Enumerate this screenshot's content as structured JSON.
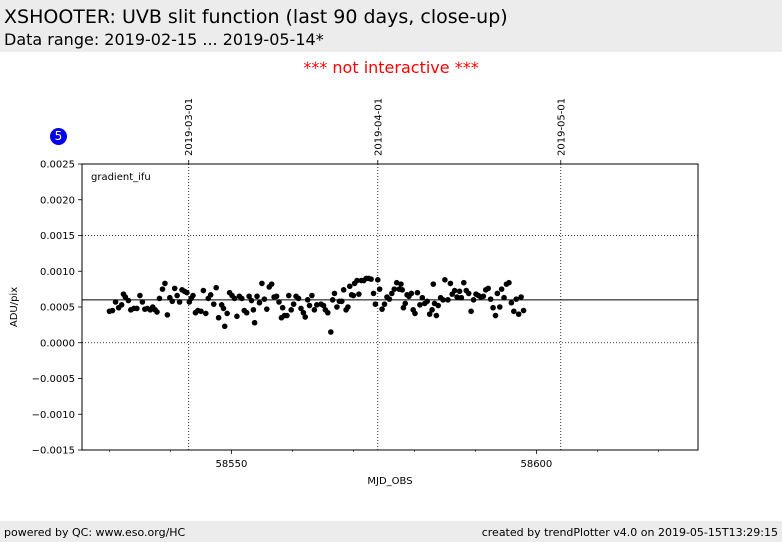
{
  "header": {
    "title": "XSHOOTER: UVB slit function (last 90 days, close-up)",
    "subtitle": "Data range: 2019-02-15 ... 2019-05-14*"
  },
  "notice": "*** not interactive ***",
  "badge": "5",
  "footer": {
    "left": "powered by QC: www.eso.org/HC",
    "right": "created by trendPlotter v4.0 on 2019-05-15T13:29:15"
  },
  "colors": {
    "points": "#000000",
    "notice": "#ff0000",
    "badge": "#0000ee",
    "band": "#ececec"
  },
  "chart_data": {
    "type": "scatter",
    "panel_label": "gradient_ifu",
    "xlabel": "MJD_OBS",
    "ylabel": "ADU/pix",
    "xlim": [
      58525.5,
      58626.5
    ],
    "ylim": [
      -0.0015,
      0.0025
    ],
    "x_ticks": [
      58550,
      58600
    ],
    "x_tick_labels": [
      "58550",
      "58600"
    ],
    "y_ticks": [
      -0.0015,
      -0.001,
      -0.0005,
      0.0,
      0.0005,
      0.001,
      0.0015,
      0.002,
      0.0025
    ],
    "y_tick_labels": [
      "−0.0015",
      "−0.0010",
      "−0.0005",
      "0.0000",
      "0.0005",
      "0.0010",
      "0.0015",
      "0.0020",
      "0.0025"
    ],
    "date_markers": [
      {
        "x": 58543,
        "label": "2019-03-01"
      },
      {
        "x": 58574,
        "label": "2019-04-01"
      },
      {
        "x": 58604,
        "label": "2019-05-01"
      }
    ],
    "reference_line": 0.0006,
    "dotted_hlines": [
      0.0,
      0.0015
    ],
    "points": [
      [
        58530.0,
        0.00044
      ],
      [
        58530.5,
        0.00045
      ],
      [
        58531.0,
        0.00057
      ],
      [
        58531.5,
        0.00049
      ],
      [
        58532.0,
        0.00053
      ],
      [
        58532.3,
        0.00068
      ],
      [
        58532.6,
        0.00064
      ],
      [
        58533.1,
        0.00059
      ],
      [
        58533.5,
        0.00046
      ],
      [
        58534.0,
        0.00048
      ],
      [
        58534.5,
        0.00048
      ],
      [
        58535.0,
        0.00066
      ],
      [
        58535.4,
        0.00057
      ],
      [
        58535.8,
        0.00047
      ],
      [
        58536.2,
        0.00048
      ],
      [
        58536.7,
        0.00046
      ],
      [
        58537.1,
        0.0005
      ],
      [
        58537.5,
        0.00046
      ],
      [
        58537.8,
        0.00043
      ],
      [
        58538.2,
        0.00062
      ],
      [
        58538.7,
        0.00075
      ],
      [
        58539.1,
        0.00083
      ],
      [
        58539.5,
        0.00039
      ],
      [
        58539.9,
        0.00063
      ],
      [
        58540.3,
        0.00058
      ],
      [
        58540.7,
        0.00076
      ],
      [
        58541.1,
        0.00066
      ],
      [
        58541.5,
        0.00057
      ],
      [
        58541.9,
        0.00074
      ],
      [
        58542.3,
        0.00072
      ],
      [
        58542.7,
        0.0007
      ],
      [
        58543.1,
        0.00057
      ],
      [
        58543.4,
        0.00062
      ],
      [
        58543.7,
        0.00066
      ],
      [
        58544.1,
        0.00042
      ],
      [
        58544.5,
        0.00045
      ],
      [
        58545.0,
        0.00044
      ],
      [
        58545.4,
        0.00073
      ],
      [
        58545.8,
        0.00041
      ],
      [
        58546.2,
        0.00062
      ],
      [
        58546.6,
        0.00067
      ],
      [
        58547.1,
        0.00054
      ],
      [
        58547.5,
        0.00077
      ],
      [
        58547.9,
        0.00035
      ],
      [
        58548.4,
        0.00053
      ],
      [
        58548.7,
        0.00048
      ],
      [
        58548.9,
        0.00023
      ],
      [
        58549.3,
        0.00041
      ],
      [
        58549.7,
        0.0007
      ],
      [
        58550.1,
        0.00066
      ],
      [
        58550.5,
        0.00062
      ],
      [
        58550.9,
        0.00037
      ],
      [
        58551.3,
        0.00065
      ],
      [
        58551.7,
        0.00062
      ],
      [
        58552.1,
        0.00045
      ],
      [
        58552.5,
        0.00042
      ],
      [
        58552.9,
        0.00065
      ],
      [
        58553.3,
        0.00059
      ],
      [
        58553.6,
        0.00046
      ],
      [
        58553.8,
        0.00028
      ],
      [
        58554.2,
        0.00065
      ],
      [
        58554.6,
        0.00056
      ],
      [
        58555.0,
        0.00083
      ],
      [
        58555.4,
        0.00061
      ],
      [
        58555.8,
        0.00047
      ],
      [
        58556.2,
        0.00078
      ],
      [
        58556.6,
        0.00082
      ],
      [
        58557.0,
        0.00064
      ],
      [
        58557.4,
        0.00065
      ],
      [
        58557.8,
        0.00057
      ],
      [
        58558.2,
        0.00035
      ],
      [
        58558.4,
        0.00049
      ],
      [
        58558.7,
        0.00038
      ],
      [
        58559.1,
        0.00038
      ],
      [
        58559.4,
        0.00066
      ],
      [
        58559.8,
        0.00046
      ],
      [
        58560.2,
        0.00054
      ],
      [
        58560.6,
        0.00065
      ],
      [
        58561.0,
        0.00062
      ],
      [
        58561.4,
        0.00048
      ],
      [
        58561.8,
        0.00042
      ],
      [
        58562.1,
        0.00036
      ],
      [
        58562.5,
        0.0006
      ],
      [
        58562.8,
        0.00052
      ],
      [
        58563.2,
        0.00066
      ],
      [
        58563.6,
        0.00046
      ],
      [
        58564.0,
        0.00053
      ],
      [
        58564.7,
        0.00054
      ],
      [
        58565.1,
        0.00052
      ],
      [
        58565.4,
        0.00046
      ],
      [
        58565.8,
        0.00042
      ],
      [
        58566.3,
        0.00015
      ],
      [
        58566.6,
        0.0006
      ],
      [
        58566.9,
        0.00069
      ],
      [
        58567.3,
        0.0005
      ],
      [
        58567.7,
        0.00058
      ],
      [
        58568.1,
        0.00058
      ],
      [
        58568.4,
        0.00074
      ],
      [
        58568.8,
        0.00046
      ],
      [
        58569.1,
        0.0005
      ],
      [
        58569.4,
        0.00079
      ],
      [
        58569.7,
        0.00067
      ],
      [
        58570.0,
        0.00066
      ],
      [
        58570.2,
        0.00083
      ],
      [
        58570.6,
        0.00087
      ],
      [
        58570.9,
        0.00068
      ],
      [
        58571.3,
        0.00087
      ],
      [
        58571.7,
        0.00087
      ],
      [
        58572.1,
        0.0009
      ],
      [
        58572.5,
        0.0009
      ],
      [
        58572.9,
        0.00089
      ],
      [
        58573.3,
        0.00069
      ],
      [
        58573.6,
        0.00054
      ],
      [
        58574.0,
        0.00088
      ],
      [
        58574.3,
        0.00075
      ],
      [
        58574.7,
        0.00047
      ],
      [
        58575.1,
        0.00054
      ],
      [
        58575.5,
        0.00064
      ],
      [
        58575.9,
        0.00061
      ],
      [
        58576.3,
        0.00069
      ],
      [
        58576.7,
        0.00075
      ],
      [
        58577.1,
        0.00084
      ],
      [
        58577.5,
        0.00075
      ],
      [
        58577.8,
        0.00082
      ],
      [
        58578.0,
        0.00074
      ],
      [
        58578.2,
        0.00049
      ],
      [
        58578.5,
        0.00055
      ],
      [
        58578.8,
        0.00067
      ],
      [
        58579.1,
        0.00065
      ],
      [
        58579.5,
        0.00069
      ],
      [
        58579.8,
        0.00046
      ],
      [
        58580.1,
        0.00041
      ],
      [
        58580.5,
        0.0007
      ],
      [
        58580.9,
        0.00053
      ],
      [
        58581.3,
        0.00063
      ],
      [
        58581.7,
        0.00055
      ],
      [
        58582.1,
        0.00058
      ],
      [
        58582.5,
        0.0004
      ],
      [
        58582.9,
        0.00046
      ],
      [
        58583.1,
        0.00082
      ],
      [
        58583.3,
        0.00055
      ],
      [
        58583.6,
        0.00038
      ],
      [
        58583.9,
        0.00052
      ],
      [
        58584.3,
        0.00063
      ],
      [
        58584.7,
        0.0006
      ],
      [
        58585.0,
        0.00088
      ],
      [
        58585.5,
        0.0006
      ],
      [
        58585.9,
        0.00083
      ],
      [
        58586.2,
        0.00068
      ],
      [
        58586.6,
        0.00073
      ],
      [
        58587.0,
        0.00064
      ],
      [
        58587.4,
        0.00072
      ],
      [
        58587.7,
        0.00063
      ],
      [
        58588.1,
        0.00084
      ],
      [
        58588.5,
        0.00073
      ],
      [
        58588.9,
        0.00069
      ],
      [
        58589.3,
        0.00044
      ],
      [
        58589.7,
        0.0006
      ],
      [
        58590.1,
        0.00068
      ],
      [
        58590.5,
        0.00066
      ],
      [
        58590.9,
        0.00064
      ],
      [
        58591.3,
        0.00065
      ],
      [
        58591.7,
        0.00074
      ],
      [
        58592.1,
        0.00076
      ],
      [
        58592.5,
        0.00061
      ],
      [
        58592.9,
        0.00049
      ],
      [
        58593.3,
        0.00038
      ],
      [
        58593.6,
        0.00069
      ],
      [
        58594.0,
        0.0005
      ],
      [
        58594.3,
        0.00075
      ],
      [
        58594.7,
        0.00063
      ],
      [
        58595.1,
        0.00082
      ],
      [
        58595.5,
        0.00084
      ],
      [
        58595.9,
        0.00056
      ],
      [
        58596.3,
        0.00044
      ],
      [
        58596.7,
        0.00061
      ],
      [
        58597.1,
        0.0004
      ],
      [
        58597.5,
        0.00064
      ],
      [
        58597.9,
        0.00045
      ]
    ]
  }
}
